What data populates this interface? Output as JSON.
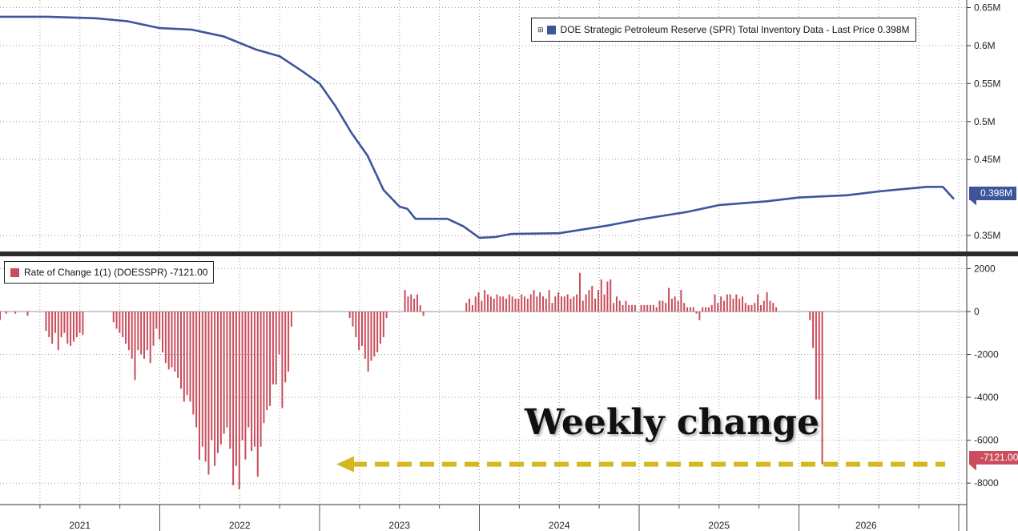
{
  "chart_data": [
    {
      "type": "line",
      "legend": "DOE Strategic Petroleum Reserve (SPR) Total Inventory Data - Last Price 0.398M",
      "last_value_label": "0.398M",
      "color": "#3c559c",
      "yticks": [
        "0.65M",
        "0.6M",
        "0.55M",
        "0.5M",
        "0.45M",
        "0.35M"
      ],
      "yticks_values": [
        0.65,
        0.6,
        0.55,
        0.5,
        0.45,
        0.35
      ],
      "ylim": [
        0.33,
        0.66
      ],
      "x": [
        2020.0,
        2020.3,
        2020.6,
        2020.8,
        2021.0,
        2021.2,
        2021.4,
        2021.6,
        2021.75,
        2021.9,
        2022.0,
        2022.1,
        2022.2,
        2022.3,
        2022.4,
        2022.5,
        2022.55,
        2022.6,
        2022.7,
        2022.8,
        2022.9,
        2023.0,
        2023.1,
        2023.2,
        2023.5,
        2023.8,
        2024.0,
        2024.3,
        2024.5,
        2024.8,
        2025.0,
        2025.3,
        2025.5,
        2025.6,
        2025.8,
        2025.9,
        2025.97
      ],
      "values": [
        0.638,
        0.638,
        0.636,
        0.632,
        0.623,
        0.621,
        0.612,
        0.595,
        0.586,
        0.565,
        0.55,
        0.52,
        0.485,
        0.455,
        0.41,
        0.388,
        0.385,
        0.372,
        0.372,
        0.372,
        0.362,
        0.347,
        0.348,
        0.352,
        0.353,
        0.363,
        0.371,
        0.381,
        0.39,
        0.395,
        0.4,
        0.403,
        0.408,
        0.41,
        0.414,
        0.414,
        0.398
      ]
    },
    {
      "type": "bar",
      "legend": "Rate of Change 1(1) (DOESSPR) -7121.00",
      "last_value_label": "-7121.00",
      "color": "#c94d5c",
      "yticks": [
        "2000",
        "0",
        "-2000",
        "-4000",
        "-6000",
        "-8000"
      ],
      "yticks_values": [
        2000,
        0,
        -2000,
        -4000,
        -6000,
        -8000
      ],
      "ylim": [
        -9000,
        2500
      ],
      "x_start": 2020.0,
      "x_step": 0.0192,
      "values": [
        -400,
        0,
        -100,
        0,
        0,
        -100,
        0,
        0,
        0,
        -200,
        0,
        0,
        0,
        0,
        0,
        -900,
        -1200,
        -1500,
        -1000,
        -1800,
        -1200,
        -1000,
        -1500,
        -1600,
        -1400,
        -1200,
        -1000,
        -1100,
        0,
        0,
        0,
        0,
        0,
        0,
        0,
        0,
        0,
        -500,
        -800,
        -1000,
        -1200,
        -1500,
        -1800,
        -2200,
        -3200,
        -1800,
        -2000,
        -2200,
        -1800,
        -2400,
        -1600,
        -800,
        -1300,
        -1900,
        -2400,
        -2700,
        -2600,
        -2800,
        -3100,
        -3600,
        -4200,
        -3900,
        -4200,
        -4800,
        -5400,
        -6900,
        -6300,
        -7000,
        -7600,
        -6000,
        -7200,
        -6600,
        -6200,
        -5700,
        -5400,
        -6400,
        -8100,
        -7200,
        -8300,
        -6000,
        -6900,
        -5400,
        -6500,
        -6300,
        -7700,
        -6300,
        -5200,
        -4600,
        -4400,
        -3400,
        -3400,
        -2000,
        -4500,
        -3300,
        -2800,
        -700,
        0,
        0,
        0,
        0,
        0,
        0,
        0,
        0,
        0,
        0,
        0,
        0,
        0,
        0,
        0,
        0,
        0,
        0,
        -300,
        -700,
        -1200,
        -1800,
        -1600,
        -2200,
        -2800,
        -2300,
        -2100,
        -1900,
        -1500,
        -1200,
        -300,
        0,
        0,
        0,
        0,
        0,
        1000,
        700,
        800,
        600,
        800,
        300,
        -200,
        0,
        0,
        0,
        0,
        0,
        0,
        0,
        0,
        0,
        0,
        0,
        0,
        0,
        400,
        600,
        300,
        700,
        900,
        500,
        1000,
        800,
        700,
        600,
        800,
        700,
        700,
        600,
        800,
        700,
        600,
        600,
        800,
        700,
        600,
        800,
        1000,
        700,
        900,
        700,
        600,
        1000,
        400,
        700,
        900,
        700,
        700,
        800,
        600,
        700,
        800,
        1800,
        500,
        800,
        1000,
        1200,
        600,
        1000,
        1500,
        800,
        1400,
        1500,
        400,
        700,
        500,
        300,
        500,
        300,
        300,
        300,
        0,
        300,
        300,
        300,
        300,
        300,
        200,
        500,
        500,
        400,
        1100,
        600,
        700,
        500,
        1000,
        400,
        200,
        200,
        200,
        -100,
        -400,
        200,
        200,
        200,
        300,
        800,
        400,
        700,
        500,
        800,
        800,
        600,
        800,
        600,
        700,
        400,
        300,
        300,
        400,
        800,
        300,
        500,
        900,
        500,
        400,
        200,
        0,
        0,
        0,
        0,
        0,
        0,
        0,
        0,
        0,
        0,
        -400,
        -1700,
        -4100,
        -4100,
        -7121
      ]
    }
  ],
  "x_axis": {
    "year_labels": [
      "2021",
      "2022",
      "2023",
      "2024",
      "2025",
      "2026"
    ],
    "year_label_positions": [
      2020.5,
      2021.5,
      2022.5,
      2023.5,
      2024.5,
      2025.42
    ],
    "year_starts": [
      2021.0,
      2022.0,
      2023.0,
      2024.0,
      2025.0,
      2026.0
    ],
    "range": [
      2020.0,
      2026.05
    ]
  },
  "grid": true,
  "annotation": {
    "text": "Weekly change",
    "arrow_color": "#d4b81e",
    "arrow_y": -7121
  }
}
